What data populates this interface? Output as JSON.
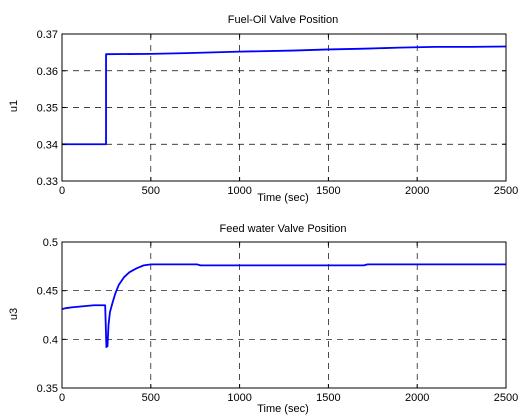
{
  "chart_data": [
    {
      "type": "line",
      "title": "Fuel-Oil Valve Position",
      "xlabel": "Time (sec)",
      "ylabel": "u1",
      "xlim": [
        0,
        2500
      ],
      "ylim": [
        0.33,
        0.37
      ],
      "xticks": [
        "0",
        "500",
        "1000",
        "1500",
        "2000",
        "2500"
      ],
      "yticks": [
        "0.33",
        "0.34",
        "0.35",
        "0.36",
        "0.37"
      ],
      "grid": true,
      "line_color": "#0000ff",
      "series": [
        {
          "x": [
            0,
            248,
            248,
            252,
            500,
            700,
            1000,
            1300,
            1500,
            1700,
            1900,
            2100,
            2300,
            2500
          ],
          "y": [
            0.34,
            0.34,
            0.3645,
            0.3645,
            0.3646,
            0.3648,
            0.3652,
            0.3655,
            0.3658,
            0.366,
            0.3663,
            0.3665,
            0.3665,
            0.3666
          ]
        }
      ]
    },
    {
      "type": "line",
      "title": "Feed water Valve Position",
      "xlabel": "Time (sec)",
      "ylabel": "u3",
      "xlim": [
        0,
        2500
      ],
      "ylim": [
        0.35,
        0.5
      ],
      "xticks": [
        "0",
        "500",
        "1000",
        "1500",
        "2000",
        "2500"
      ],
      "yticks": [
        "0.35",
        "0.4",
        "0.45",
        "0.5"
      ],
      "grid": true,
      "line_color": "#0000ff",
      "series": [
        {
          "x": [
            0,
            20,
            60,
            120,
            180,
            230,
            243,
            250,
            256,
            262,
            270,
            285,
            300,
            320,
            350,
            380,
            420,
            460,
            500,
            760,
            780,
            1700,
            1720,
            2500
          ],
          "y": [
            0.431,
            0.432,
            0.433,
            0.434,
            0.435,
            0.435,
            0.435,
            0.392,
            0.393,
            0.415,
            0.428,
            0.438,
            0.447,
            0.456,
            0.464,
            0.469,
            0.473,
            0.476,
            0.477,
            0.477,
            0.476,
            0.476,
            0.477,
            0.477
          ]
        }
      ]
    }
  ]
}
